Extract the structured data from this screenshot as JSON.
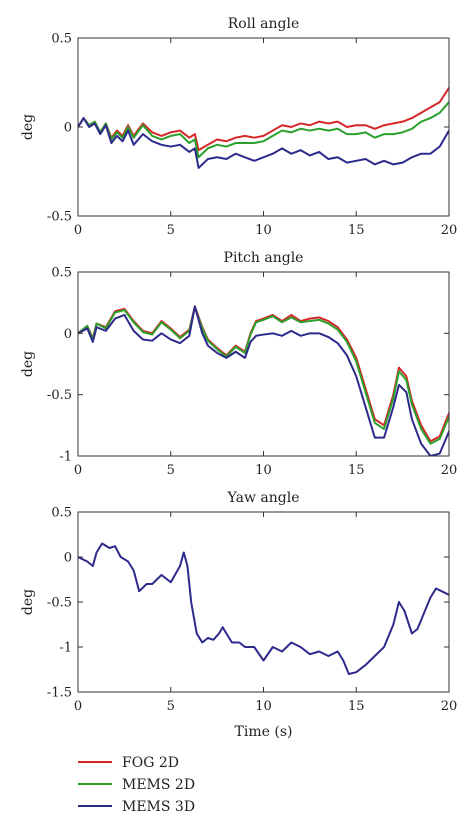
{
  "colors": {
    "fog2d": "#d62728",
    "mems2d": "#2ca02c",
    "mems3d": "#2e2a8c"
  },
  "chart_data": [
    {
      "type": "line",
      "title": "Roll angle",
      "xlabel": "",
      "ylabel": "deg",
      "xlim": [
        0,
        20
      ],
      "ylim": [
        -0.5,
        0.5
      ],
      "xticks": [
        0,
        5,
        10,
        15,
        20
      ],
      "yticks": [
        -0.5,
        0,
        0.5
      ],
      "series": [
        {
          "key": "fog2d",
          "x": [
            0,
            0.3,
            0.6,
            0.9,
            1.2,
            1.5,
            1.8,
            2.1,
            2.4,
            2.7,
            3.0,
            3.5,
            4.0,
            4.5,
            5.0,
            5.5,
            6.0,
            6.3,
            6.5,
            7.0,
            7.5,
            8.0,
            8.5,
            9.0,
            9.5,
            10.0,
            10.5,
            11.0,
            11.5,
            12.0,
            12.5,
            13.0,
            13.5,
            14.0,
            14.5,
            15.0,
            15.5,
            16.0,
            16.5,
            17.0,
            17.5,
            18.0,
            18.5,
            19.0,
            19.5,
            20.0
          ],
          "y": [
            0,
            0.05,
            0.01,
            0.03,
            -0.03,
            0.02,
            -0.06,
            -0.02,
            -0.05,
            0.01,
            -0.05,
            0.02,
            -0.03,
            -0.05,
            -0.03,
            -0.02,
            -0.06,
            -0.04,
            -0.13,
            -0.1,
            -0.07,
            -0.08,
            -0.06,
            -0.05,
            -0.06,
            -0.05,
            -0.02,
            0.01,
            0.0,
            0.02,
            0.01,
            0.03,
            0.02,
            0.03,
            0.0,
            0.01,
            0.01,
            -0.01,
            0.01,
            0.02,
            0.03,
            0.05,
            0.08,
            0.11,
            0.14,
            0.22
          ]
        },
        {
          "key": "mems2d",
          "x": [
            0,
            0.3,
            0.6,
            0.9,
            1.2,
            1.5,
            1.8,
            2.1,
            2.4,
            2.7,
            3.0,
            3.5,
            4.0,
            4.5,
            5.0,
            5.5,
            6.0,
            6.3,
            6.5,
            7.0,
            7.5,
            8.0,
            8.5,
            9.0,
            9.5,
            10.0,
            10.5,
            11.0,
            11.5,
            12.0,
            12.5,
            13.0,
            13.5,
            14.0,
            14.5,
            15.0,
            15.5,
            16.0,
            16.5,
            17.0,
            17.5,
            18.0,
            18.5,
            19.0,
            19.5,
            20.0
          ],
          "y": [
            0,
            0.05,
            0.01,
            0.03,
            -0.03,
            0.02,
            -0.07,
            -0.03,
            -0.06,
            0.0,
            -0.06,
            0.01,
            -0.05,
            -0.07,
            -0.05,
            -0.04,
            -0.09,
            -0.07,
            -0.17,
            -0.12,
            -0.1,
            -0.11,
            -0.09,
            -0.09,
            -0.09,
            -0.08,
            -0.05,
            -0.02,
            -0.03,
            -0.01,
            -0.02,
            -0.01,
            -0.02,
            -0.01,
            -0.04,
            -0.04,
            -0.03,
            -0.06,
            -0.04,
            -0.04,
            -0.03,
            -0.01,
            0.03,
            0.05,
            0.08,
            0.14
          ]
        },
        {
          "key": "mems3d",
          "x": [
            0,
            0.3,
            0.6,
            0.9,
            1.2,
            1.5,
            1.8,
            2.1,
            2.4,
            2.7,
            3.0,
            3.5,
            4.0,
            4.5,
            5.0,
            5.5,
            6.0,
            6.3,
            6.5,
            7.0,
            7.5,
            8.0,
            8.5,
            9.0,
            9.5,
            10.0,
            10.5,
            11.0,
            11.5,
            12.0,
            12.5,
            13.0,
            13.5,
            14.0,
            14.5,
            15.0,
            15.5,
            16.0,
            16.5,
            17.0,
            17.5,
            18.0,
            18.5,
            19.0,
            19.5,
            20.0
          ],
          "y": [
            0,
            0.05,
            0.0,
            0.02,
            -0.04,
            0.01,
            -0.09,
            -0.05,
            -0.08,
            -0.02,
            -0.1,
            -0.04,
            -0.08,
            -0.1,
            -0.11,
            -0.1,
            -0.14,
            -0.12,
            -0.23,
            -0.18,
            -0.17,
            -0.18,
            -0.15,
            -0.17,
            -0.19,
            -0.17,
            -0.15,
            -0.12,
            -0.15,
            -0.13,
            -0.16,
            -0.14,
            -0.18,
            -0.17,
            -0.2,
            -0.19,
            -0.18,
            -0.21,
            -0.19,
            -0.21,
            -0.2,
            -0.17,
            -0.15,
            -0.15,
            -0.11,
            -0.02
          ]
        }
      ]
    },
    {
      "type": "line",
      "title": "Pitch angle",
      "xlabel": "",
      "ylabel": "deg",
      "xlim": [
        0,
        20
      ],
      "ylim": [
        -1,
        0.5
      ],
      "xticks": [
        0,
        5,
        10,
        15,
        20
      ],
      "yticks": [
        -1,
        -0.5,
        0,
        0.5
      ],
      "series": [
        {
          "key": "fog2d",
          "x": [
            0,
            0.5,
            0.8,
            1.0,
            1.5,
            2.0,
            2.5,
            3.0,
            3.5,
            4.0,
            4.5,
            5.0,
            5.5,
            6.0,
            6.3,
            6.7,
            7.0,
            7.5,
            8.0,
            8.5,
            9.0,
            9.3,
            9.6,
            10.0,
            10.5,
            11.0,
            11.5,
            12.0,
            12.5,
            13.0,
            13.5,
            14.0,
            14.5,
            15.0,
            15.5,
            16.0,
            16.5,
            17.0,
            17.3,
            17.7,
            18.0,
            18.5,
            19.0,
            19.5,
            20.0
          ],
          "y": [
            0,
            0.06,
            -0.04,
            0.08,
            0.05,
            0.18,
            0.2,
            0.1,
            0.02,
            0.0,
            0.1,
            0.04,
            -0.03,
            0.03,
            0.22,
            0.05,
            -0.05,
            -0.12,
            -0.18,
            -0.1,
            -0.15,
            0.0,
            0.1,
            0.12,
            0.15,
            0.1,
            0.15,
            0.1,
            0.12,
            0.13,
            0.1,
            0.05,
            -0.05,
            -0.2,
            -0.45,
            -0.7,
            -0.75,
            -0.5,
            -0.28,
            -0.35,
            -0.55,
            -0.75,
            -0.88,
            -0.84,
            -0.65
          ]
        },
        {
          "key": "mems2d",
          "x": [
            0,
            0.5,
            0.8,
            1.0,
            1.5,
            2.0,
            2.5,
            3.0,
            3.5,
            4.0,
            4.5,
            5.0,
            5.5,
            6.0,
            6.3,
            6.7,
            7.0,
            7.5,
            8.0,
            8.5,
            9.0,
            9.3,
            9.6,
            10.0,
            10.5,
            11.0,
            11.5,
            12.0,
            12.5,
            13.0,
            13.5,
            14.0,
            14.5,
            15.0,
            15.5,
            16.0,
            16.5,
            17.0,
            17.3,
            17.7,
            18.0,
            18.5,
            19.0,
            19.5,
            20.0
          ],
          "y": [
            0,
            0.06,
            -0.05,
            0.08,
            0.04,
            0.17,
            0.19,
            0.09,
            0.01,
            -0.01,
            0.09,
            0.03,
            -0.04,
            0.02,
            0.21,
            0.04,
            -0.06,
            -0.13,
            -0.19,
            -0.11,
            -0.16,
            -0.01,
            0.09,
            0.11,
            0.14,
            0.09,
            0.13,
            0.09,
            0.1,
            0.11,
            0.08,
            0.03,
            -0.07,
            -0.23,
            -0.48,
            -0.73,
            -0.78,
            -0.53,
            -0.31,
            -0.38,
            -0.58,
            -0.78,
            -0.9,
            -0.86,
            -0.68
          ]
        },
        {
          "key": "mems3d",
          "x": [
            0,
            0.5,
            0.8,
            1.0,
            1.5,
            2.0,
            2.5,
            3.0,
            3.5,
            4.0,
            4.5,
            5.0,
            5.5,
            6.0,
            6.3,
            6.7,
            7.0,
            7.5,
            8.0,
            8.5,
            9.0,
            9.3,
            9.6,
            10.0,
            10.5,
            11.0,
            11.5,
            12.0,
            12.5,
            13.0,
            13.5,
            14.0,
            14.5,
            15.0,
            15.5,
            16.0,
            16.5,
            17.0,
            17.3,
            17.7,
            18.0,
            18.5,
            19.0,
            19.5,
            20.0
          ],
          "y": [
            0,
            0.04,
            -0.07,
            0.05,
            0.02,
            0.12,
            0.15,
            0.02,
            -0.05,
            -0.06,
            0.0,
            -0.05,
            -0.08,
            -0.02,
            0.22,
            0.0,
            -0.1,
            -0.16,
            -0.2,
            -0.15,
            -0.2,
            -0.07,
            -0.02,
            -0.01,
            0.0,
            -0.02,
            0.02,
            -0.02,
            0.0,
            0.0,
            -0.03,
            -0.08,
            -0.18,
            -0.35,
            -0.6,
            -0.85,
            -0.85,
            -0.6,
            -0.42,
            -0.48,
            -0.7,
            -0.9,
            -1.0,
            -0.98,
            -0.8
          ]
        }
      ]
    },
    {
      "type": "line",
      "title": "Yaw angle",
      "xlabel": "Time (s)",
      "ylabel": "deg",
      "xlim": [
        0,
        20
      ],
      "ylim": [
        -1.5,
        0.5
      ],
      "xticks": [
        0,
        5,
        10,
        15,
        20
      ],
      "yticks": [
        -1.5,
        -1,
        -0.5,
        0,
        0.5
      ],
      "series": [
        {
          "key": "mems3d",
          "x": [
            0,
            0.5,
            0.8,
            1.0,
            1.3,
            1.7,
            2.0,
            2.3,
            2.7,
            3.0,
            3.3,
            3.7,
            4.0,
            4.5,
            5.0,
            5.5,
            5.7,
            5.9,
            6.1,
            6.4,
            6.7,
            7.0,
            7.3,
            7.6,
            7.8,
            8.0,
            8.3,
            8.7,
            9.0,
            9.5,
            10.0,
            10.5,
            11.0,
            11.5,
            12.0,
            12.5,
            13.0,
            13.5,
            14.0,
            14.3,
            14.6,
            15.0,
            15.5,
            16.0,
            16.5,
            17.0,
            17.3,
            17.6,
            18.0,
            18.3,
            18.6,
            19.0,
            19.3,
            19.6,
            20.0
          ],
          "y": [
            0,
            -0.05,
            -0.1,
            0.05,
            0.15,
            0.1,
            0.12,
            0.0,
            -0.05,
            -0.15,
            -0.38,
            -0.3,
            -0.3,
            -0.2,
            -0.28,
            -0.1,
            0.05,
            -0.1,
            -0.5,
            -0.85,
            -0.95,
            -0.9,
            -0.92,
            -0.85,
            -0.78,
            -0.85,
            -0.95,
            -0.95,
            -1.0,
            -1.0,
            -1.15,
            -1.0,
            -1.05,
            -0.95,
            -1.0,
            -1.08,
            -1.05,
            -1.1,
            -1.05,
            -1.15,
            -1.3,
            -1.28,
            -1.2,
            -1.1,
            -1.0,
            -0.75,
            -0.5,
            -0.6,
            -0.85,
            -0.8,
            -0.65,
            -0.45,
            -0.35,
            -0.38,
            -0.42
          ]
        }
      ]
    }
  ],
  "legend": [
    {
      "key": "fog2d",
      "label": "FOG 2D"
    },
    {
      "key": "mems2d",
      "label": "MEMS 2D"
    },
    {
      "key": "mems3d",
      "label": "MEMS 3D"
    }
  ]
}
